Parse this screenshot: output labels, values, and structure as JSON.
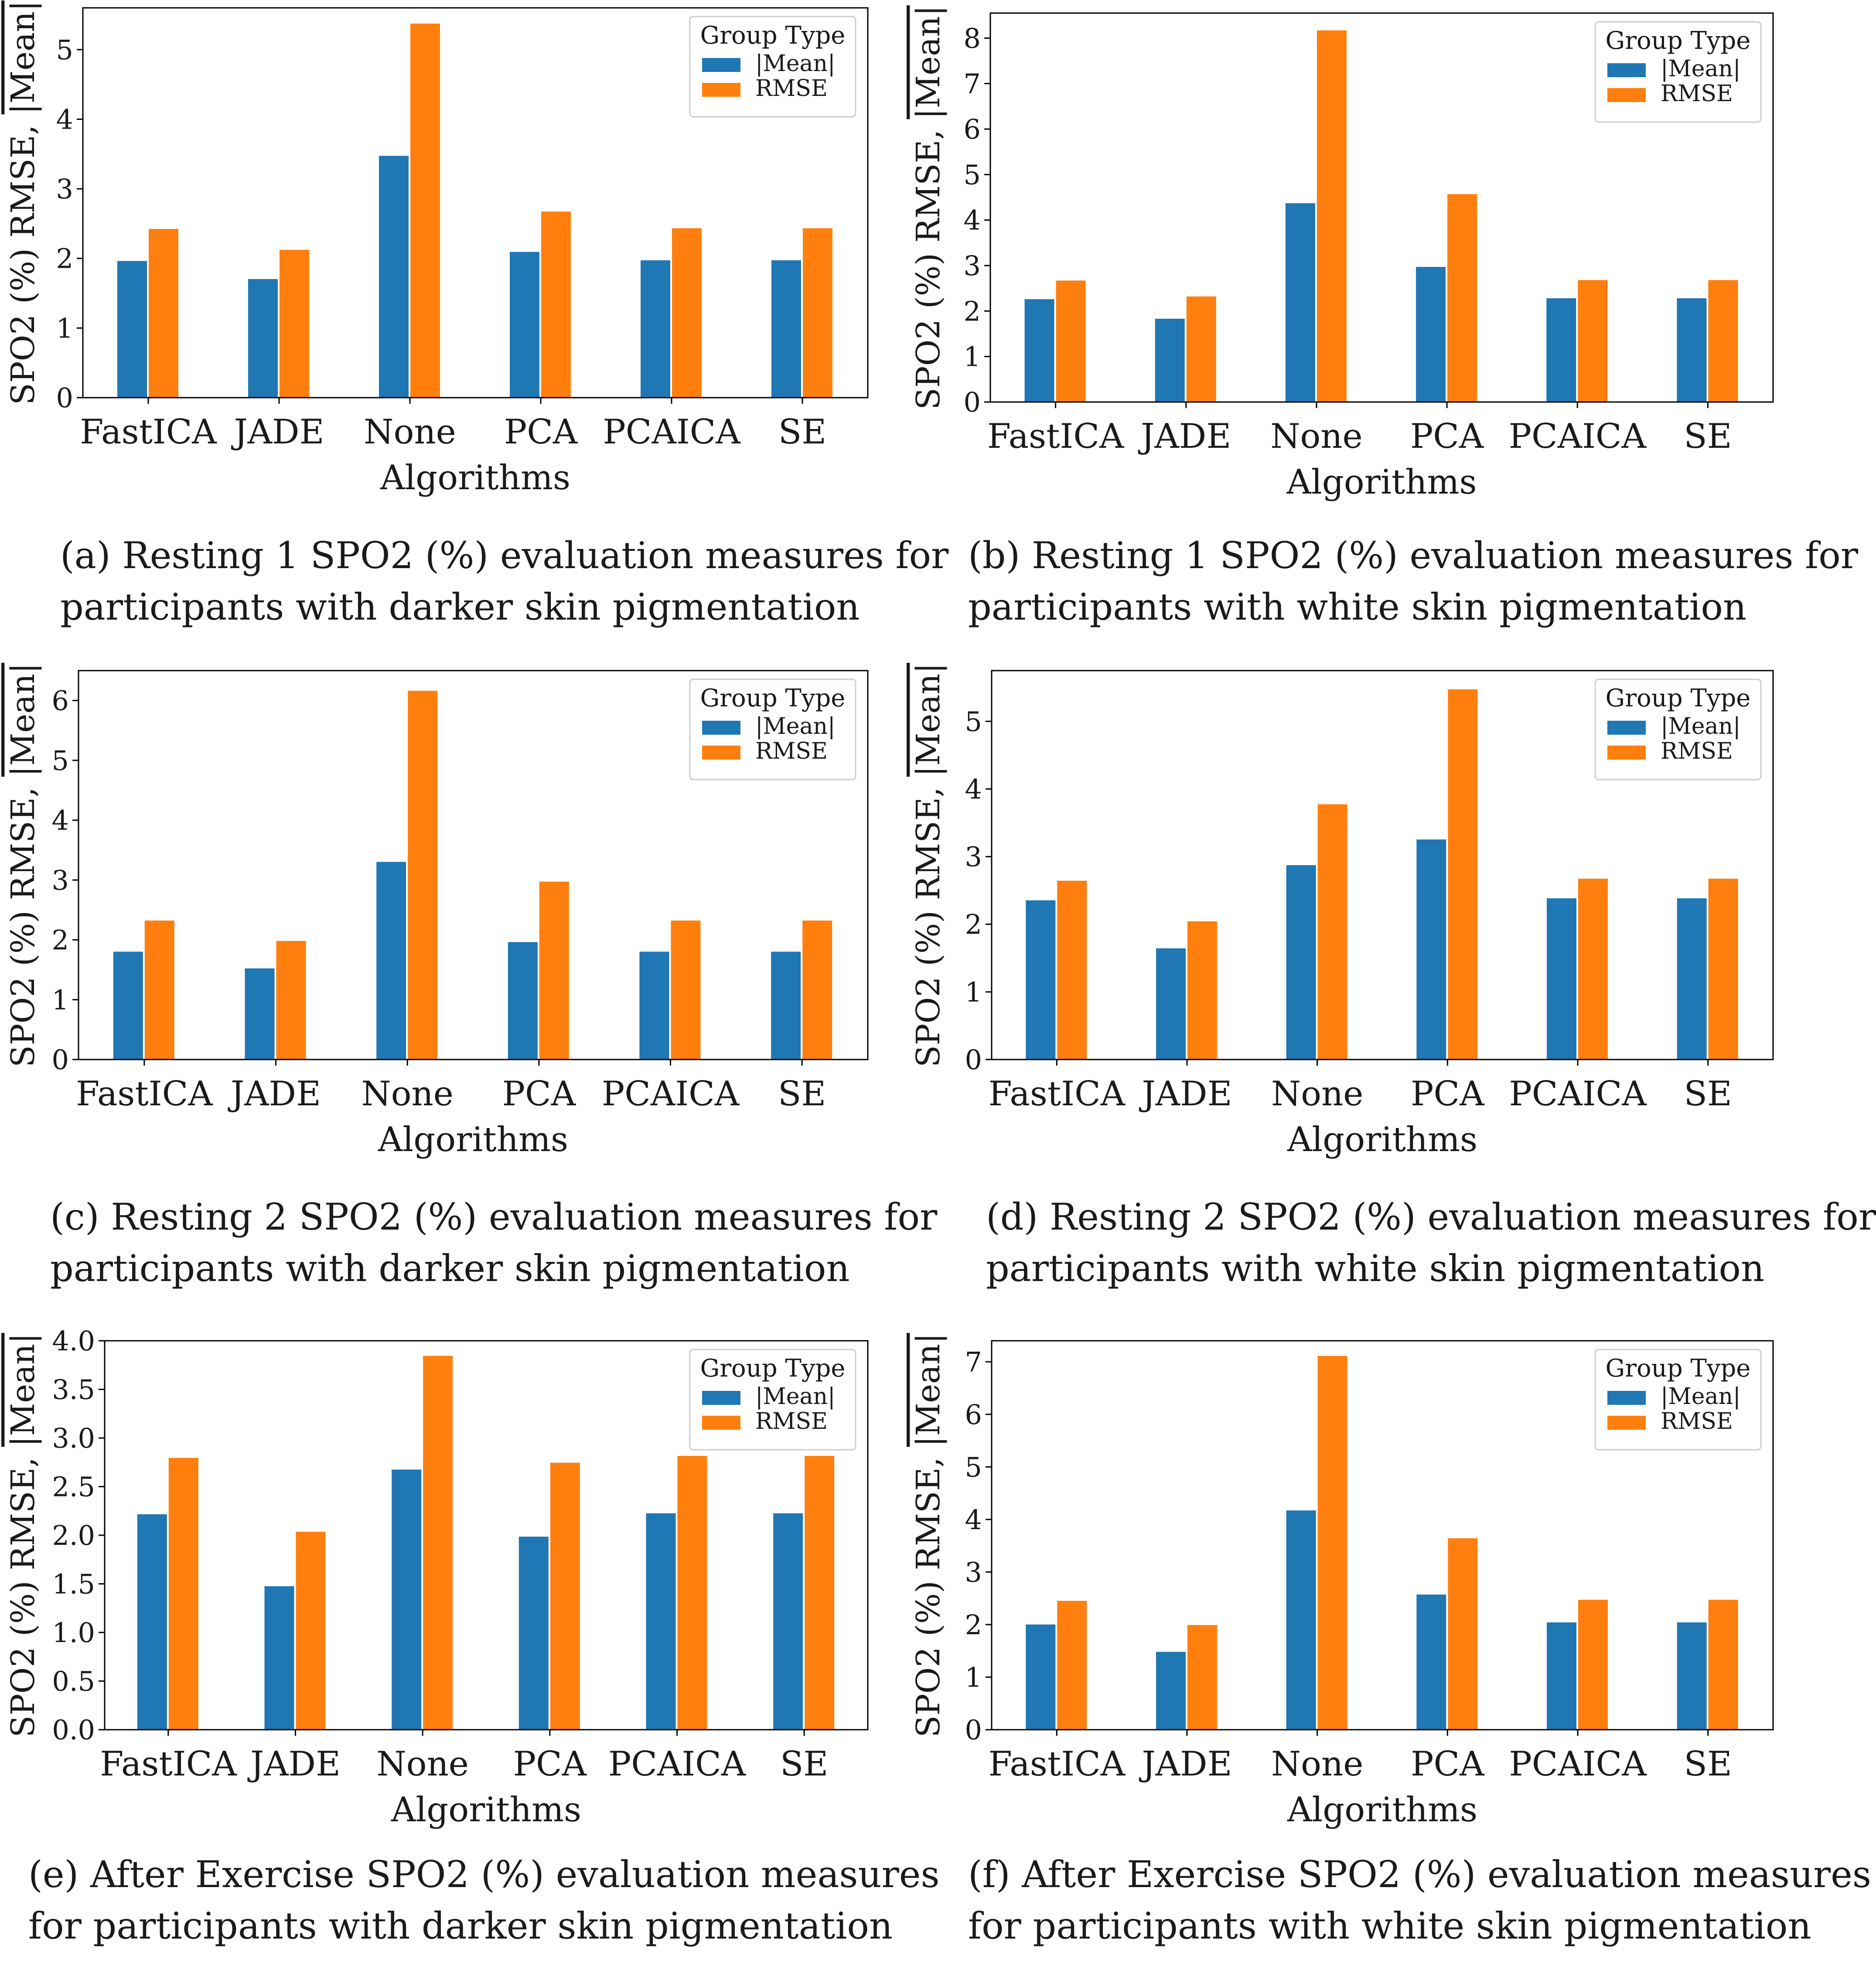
{
  "legend": {
    "title": "Group Type",
    "mean_label": "|Mean|",
    "rmse_label": "RMSE"
  },
  "colors": {
    "mean": "#1f77b4",
    "rmse": "#ff7f0e",
    "axis": "#000000"
  },
  "chart_data": [
    {
      "id": "a",
      "type": "bar",
      "categories": [
        "FastICA",
        "JADE",
        "None",
        "PCA",
        "PCAICA",
        "SE"
      ],
      "series": [
        {
          "name": "|Mean|",
          "values": [
            1.97,
            1.71,
            3.48,
            2.1,
            1.98,
            1.98
          ]
        },
        {
          "name": "RMSE",
          "values": [
            2.43,
            2.13,
            5.38,
            2.68,
            2.44,
            2.44
          ]
        }
      ],
      "xlabel": "Algorithms",
      "ylabel_prefix": "SPO2 (%) RMSE,",
      "ylim": [
        0,
        5.6
      ],
      "yticks": [
        0,
        1,
        2,
        3,
        4,
        5
      ],
      "caption": [
        "(a) Resting 1 SPO2 (%) evaluation measures for",
        "participants with darker skin pigmentation"
      ]
    },
    {
      "id": "b",
      "type": "bar",
      "categories": [
        "FastICA",
        "JADE",
        "None",
        "PCA",
        "PCAICA",
        "SE"
      ],
      "series": [
        {
          "name": "|Mean|",
          "values": [
            2.27,
            1.84,
            4.38,
            2.98,
            2.29,
            2.29
          ]
        },
        {
          "name": "RMSE",
          "values": [
            2.68,
            2.33,
            8.18,
            4.58,
            2.69,
            2.69
          ]
        }
      ],
      "xlabel": "Algorithms",
      "ylabel_prefix": "SPO2 (%) RMSE,",
      "ylim": [
        0,
        8.55
      ],
      "yticks": [
        0,
        1,
        2,
        3,
        4,
        5,
        6,
        7,
        8
      ],
      "caption": [
        "(b) Resting 1 SPO2 (%) evaluation measures for",
        "participants with white skin pigmentation"
      ]
    },
    {
      "id": "c",
      "type": "bar",
      "categories": [
        "FastICA",
        "JADE",
        "None",
        "PCA",
        "PCAICA",
        "SE"
      ],
      "series": [
        {
          "name": "|Mean|",
          "values": [
            1.81,
            1.53,
            3.31,
            1.97,
            1.81,
            1.81
          ]
        },
        {
          "name": "RMSE",
          "values": [
            2.33,
            1.99,
            6.17,
            2.98,
            2.33,
            2.33
          ]
        }
      ],
      "xlabel": "Algorithms",
      "ylabel_prefix": "SPO2 (%) RMSE,",
      "ylim": [
        0,
        6.5
      ],
      "yticks": [
        0,
        1,
        2,
        3,
        4,
        5,
        6
      ],
      "caption": [
        "(c) Resting 2 SPO2 (%) evaluation measures for",
        "participants with darker skin pigmentation"
      ]
    },
    {
      "id": "d",
      "type": "bar",
      "categories": [
        "FastICA",
        "JADE",
        "None",
        "PCA",
        "PCAICA",
        "SE"
      ],
      "series": [
        {
          "name": "|Mean|",
          "values": [
            2.36,
            1.65,
            2.88,
            3.26,
            2.39,
            2.39
          ]
        },
        {
          "name": "RMSE",
          "values": [
            2.65,
            2.05,
            3.78,
            5.48,
            2.68,
            2.68
          ]
        }
      ],
      "xlabel": "Algorithms",
      "ylabel_prefix": "SPO2 (%) RMSE,",
      "ylim": [
        0,
        5.75
      ],
      "yticks": [
        0,
        1,
        2,
        3,
        4,
        5
      ],
      "caption": [
        "(d) Resting 2 SPO2 (%) evaluation measures for",
        "participants with white skin pigmentation"
      ]
    },
    {
      "id": "e",
      "type": "bar",
      "categories": [
        "FastICA",
        "JADE",
        "None",
        "PCA",
        "PCAICA",
        "SE"
      ],
      "series": [
        {
          "name": "|Mean|",
          "values": [
            2.22,
            1.48,
            2.68,
            1.99,
            2.23,
            2.23
          ]
        },
        {
          "name": "RMSE",
          "values": [
            2.8,
            2.04,
            3.85,
            2.75,
            2.82,
            2.82
          ]
        }
      ],
      "xlabel": "Algorithms",
      "ylabel_prefix": "SPO2 (%) RMSE,",
      "ylim": [
        0,
        4.0
      ],
      "yticks": [
        "0.0",
        "0.5",
        "1.0",
        "1.5",
        "2.0",
        "2.5",
        "3.0",
        "3.5",
        "4.0"
      ],
      "caption": [
        "(e) After Exercise SPO2 (%) evaluation measures",
        "for participants with darker skin pigmentation"
      ]
    },
    {
      "id": "f",
      "type": "bar",
      "categories": [
        "FastICA",
        "JADE",
        "None",
        "PCA",
        "PCAICA",
        "SE"
      ],
      "series": [
        {
          "name": "|Mean|",
          "values": [
            2.01,
            1.49,
            4.18,
            2.58,
            2.05,
            2.05
          ]
        },
        {
          "name": "RMSE",
          "values": [
            2.46,
            2.0,
            7.12,
            3.65,
            2.48,
            2.48
          ]
        }
      ],
      "xlabel": "Algorithms",
      "ylabel_prefix": "SPO2 (%) RMSE,",
      "ylim": [
        0,
        7.4
      ],
      "yticks": [
        0,
        1,
        2,
        3,
        4,
        5,
        6,
        7
      ],
      "caption": [
        "(f) After Exercise SPO2 (%) evaluation measures",
        "for participants with white skin pigmentation"
      ]
    }
  ]
}
